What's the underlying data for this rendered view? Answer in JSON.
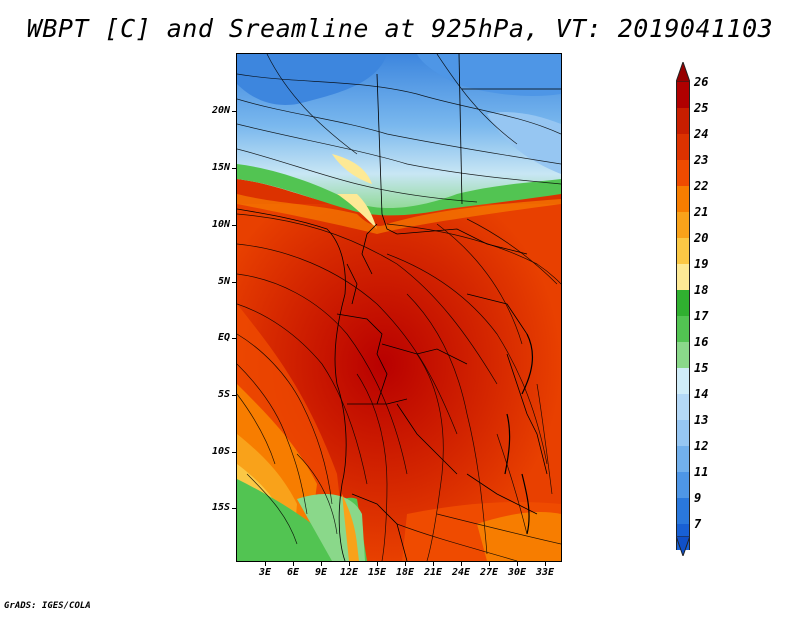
{
  "title": "WBPT [C] and Sreamline at 925hPa, VT: 2019041103",
  "footer": "GrADS: IGES/COLA",
  "map": {
    "lat_labels": [
      "20N",
      "15N",
      "10N",
      "5N",
      "EQ",
      "5S",
      "10S",
      "15S"
    ],
    "lon_labels": [
      "3E",
      "6E",
      "9E",
      "12E",
      "15E",
      "18E",
      "21E",
      "24E",
      "27E",
      "30E",
      "33E"
    ],
    "domain": {
      "lon_min": 0,
      "lon_max": 35,
      "lat_min": -20,
      "lat_max": 25
    },
    "field": "wet-bulb potential temperature (C)",
    "overlay": "streamlines"
  },
  "colorbar": {
    "labels": [
      "26",
      "25",
      "24",
      "23",
      "22",
      "21",
      "20",
      "19",
      "18",
      "17",
      "16",
      "15",
      "14",
      "13",
      "12",
      "11",
      "9",
      "7"
    ],
    "colors": [
      "#b00000",
      "#c81e00",
      "#dc3200",
      "#ef4b00",
      "#f77d00",
      "#f9a21a",
      "#fbc845",
      "#fde995",
      "#30b030",
      "#52c452",
      "#8ad88a",
      "#d0ecf8",
      "#b4d8f6",
      "#96c6f2",
      "#72b0ec",
      "#4e96e6",
      "#2a78dc",
      "#1860d4"
    ],
    "arrow_top_color": "#960000",
    "arrow_bottom_color": "#1050c8"
  }
}
